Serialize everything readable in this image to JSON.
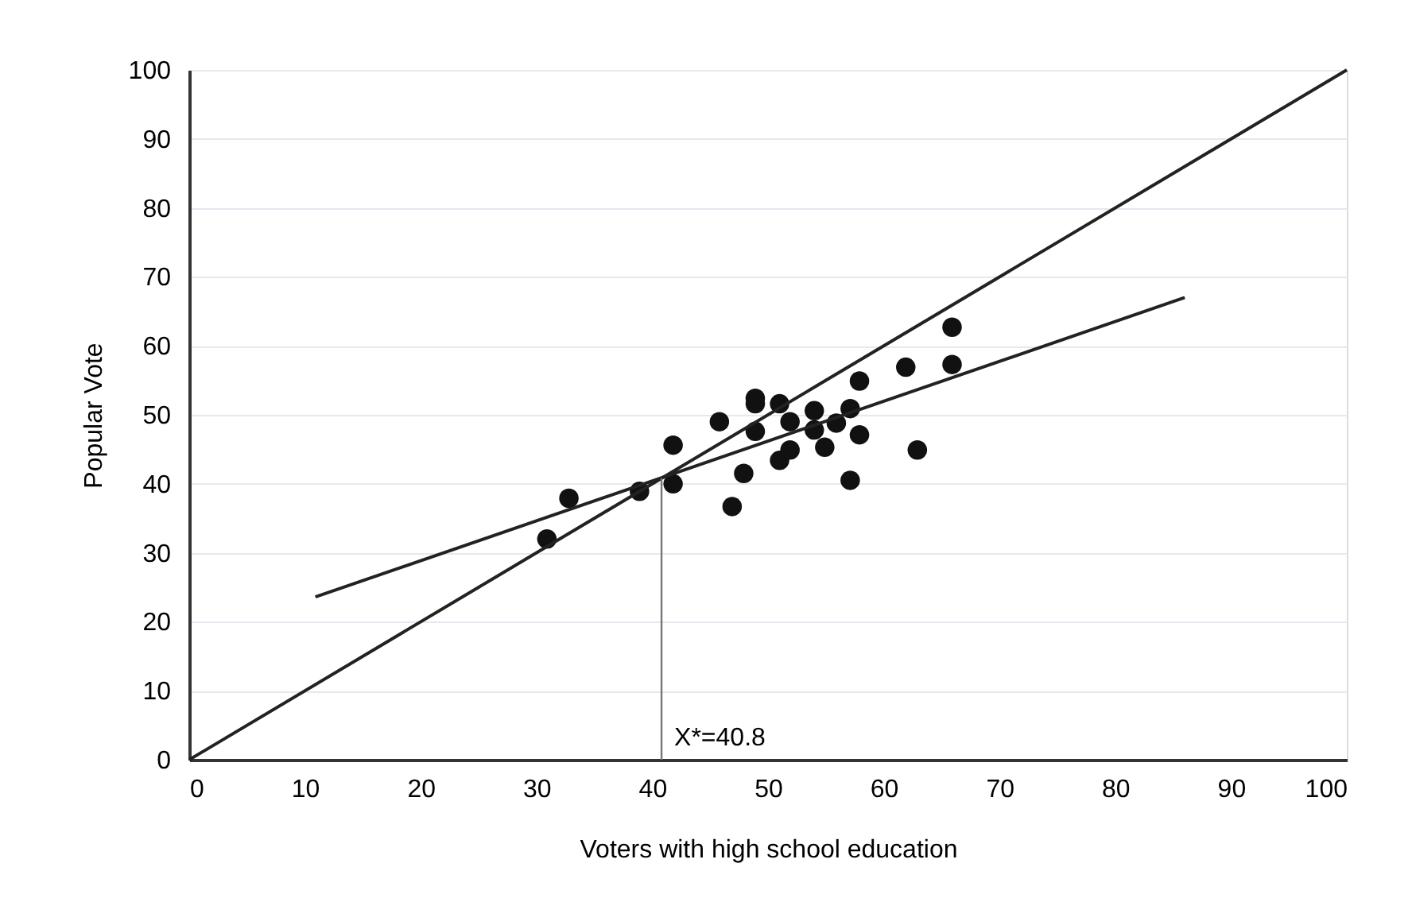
{
  "chart_data": {
    "type": "scatter",
    "xlabel": "Voters with high school education",
    "ylabel": "Popular Vote",
    "xlim": [
      0,
      100
    ],
    "ylim": [
      0,
      100
    ],
    "xticks": [
      0,
      10,
      20,
      30,
      40,
      50,
      60,
      70,
      80,
      90,
      100
    ],
    "yticks": [
      0,
      10,
      20,
      30,
      40,
      50,
      60,
      70,
      80,
      90,
      100
    ],
    "grid": "y",
    "marker": "circle",
    "annotations": [
      {
        "text": "X*=40.8",
        "x": 40.8,
        "y": 0
      }
    ],
    "series": [
      {
        "color": "#111111",
        "x": [
          30.9,
          32.8,
          38.9,
          41.8,
          41.8,
          45.8,
          46.9,
          47.9,
          48.9,
          48.9,
          48.9,
          51.0,
          51.0,
          51.9,
          51.9,
          54.0,
          54.0,
          54.9,
          55.9,
          57.1,
          57.1,
          57.9,
          57.9,
          61.9,
          62.9,
          65.9,
          65.9
        ],
        "values": [
          32.0,
          37.9,
          38.9,
          45.6,
          40.0,
          49.0,
          36.7,
          41.5,
          52.4,
          51.6,
          47.6,
          51.6,
          43.4,
          49.0,
          44.9,
          50.6,
          47.8,
          45.3,
          48.8,
          50.9,
          40.5,
          54.9,
          47.1,
          56.9,
          44.9,
          62.7,
          57.3
        ]
      },
      {
        "type": "line",
        "color": "#222222",
        "marker": "none",
        "line_style": "solid",
        "x": [
          0,
          100
        ],
        "values": [
          0,
          100
        ]
      },
      {
        "type": "line",
        "color": "#222222",
        "marker": "none",
        "line_style": "solid",
        "x": [
          10.9,
          86.0
        ],
        "values": [
          23.6,
          67.0
        ]
      },
      {
        "type": "line",
        "color": "#777777",
        "marker": "none",
        "line_style": "solid",
        "x": [
          40.8,
          40.8
        ],
        "values": [
          0,
          40.8
        ]
      }
    ]
  }
}
